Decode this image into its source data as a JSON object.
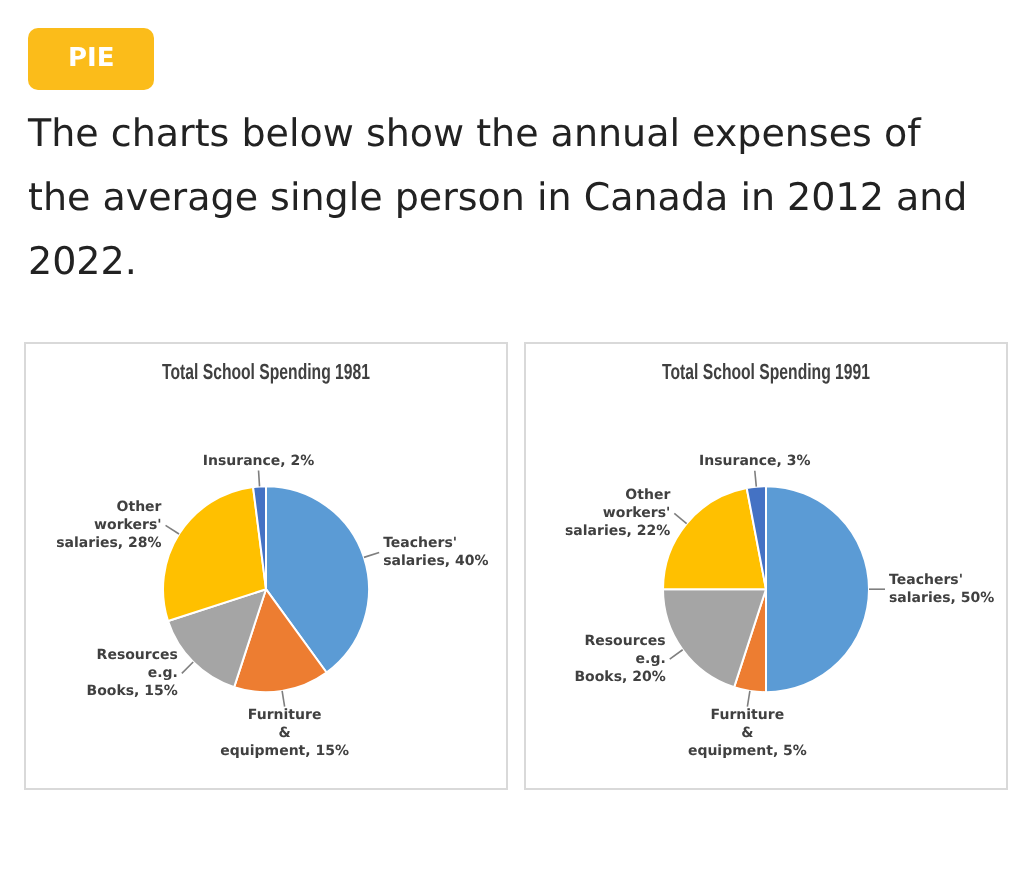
{
  "chart_data": [
    {
      "type": "other",
      "title": "The charts below show the annual expenses of the average single person in Canada in 2012 and 2022.",
      "annotations": [
        "PIE"
      ]
    },
    {
      "type": "pie",
      "title": "Total School Spending 1981",
      "categories": [
        "Teachers' salaries",
        "Furniture & equipment",
        "Resources e.g. Books",
        "Other workers' salaries",
        "Insurance"
      ],
      "values": [
        40,
        15,
        15,
        28,
        2
      ],
      "value_labels": [
        "40%",
        "15%",
        "15%",
        "28%",
        "2%"
      ],
      "colors": [
        "#5b9bd5",
        "#ed7d31",
        "#a5a5a5",
        "#ffc000",
        "#4472c4"
      ],
      "legend": false
    },
    {
      "type": "pie",
      "title": "Total School Spending 1991",
      "categories": [
        "Teachers' salaries",
        "Furniture & equipment",
        "Resources e.g. Books",
        "Other workers' salaries",
        "Insurance"
      ],
      "values": [
        50,
        5,
        20,
        22,
        3
      ],
      "value_labels": [
        "50%",
        "5%",
        "20%",
        "22%",
        "3%"
      ],
      "colors": [
        "#5b9bd5",
        "#ed7d31",
        "#a5a5a5",
        "#ffc000",
        "#4472c4"
      ],
      "legend": false
    }
  ]
}
